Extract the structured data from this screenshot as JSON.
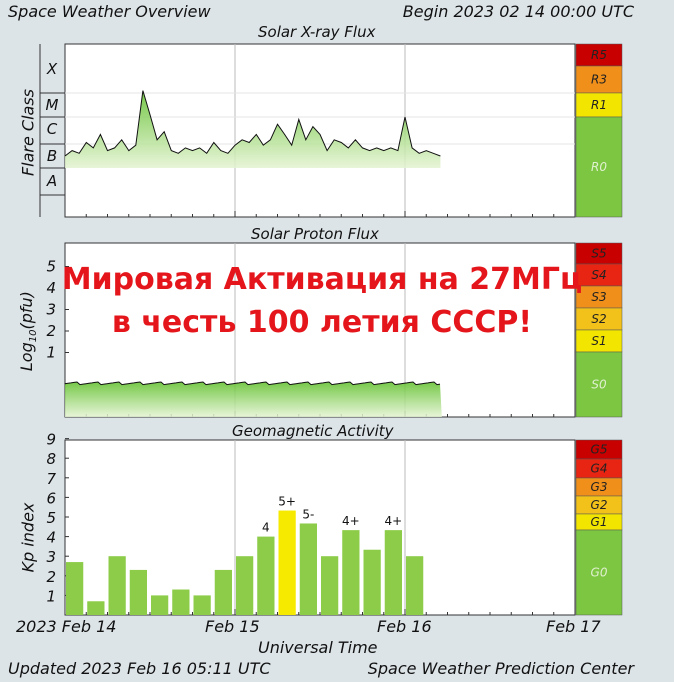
{
  "header": {
    "title": "Space Weather Overview",
    "begin": "Begin 2023 02 14 00:00 UTC"
  },
  "footer": {
    "updated": "Updated 2023 Feb 16 05:11 UTC",
    "center": "Space Weather Prediction Center",
    "xlabel": "Universal Time",
    "date_ticks": [
      "2023 Feb 14",
      "Feb 15",
      "Feb 16",
      "Feb 17"
    ]
  },
  "overlay": {
    "line1": "Мировая Активация на 27МГц",
    "line2": "в честь 100 летия СССР!"
  },
  "colors": {
    "green": "#7dc642",
    "yellow": "#f2e600",
    "orange": "#f0901a",
    "red": "#e82412",
    "darkred": "#c80000",
    "overlay_text": "#e5161b",
    "kp_bar": "#8ccc48",
    "kp_storm_bar": "#f6ea00"
  },
  "chart_data": [
    {
      "type": "area",
      "title": "Solar X-ray Flux",
      "ylabel": "Flare Class",
      "y_ticks": [
        "A",
        "B",
        "C",
        "M",
        "X"
      ],
      "scale_labels": [
        "R5",
        "R3",
        "R1",
        "R0"
      ],
      "x_range": [
        0,
        72
      ],
      "x_unit": "hours since 2023 Feb 14 00:00 UTC",
      "data_end_hour": 53.2,
      "series": [
        {
          "x": [
            0,
            1,
            2,
            3,
            4,
            5,
            6,
            7,
            8,
            9,
            10,
            11,
            12,
            13,
            14,
            15,
            16,
            17,
            18,
            19,
            20,
            21,
            22,
            23,
            24,
            25,
            26,
            27,
            28,
            29,
            30,
            31,
            32,
            33,
            34,
            35,
            36,
            37,
            38,
            39,
            40,
            41,
            42,
            43,
            44,
            45,
            46,
            47,
            48,
            49,
            50,
            51,
            52,
            53
          ],
          "values": [
            2.0,
            2.2,
            2.1,
            2.5,
            2.3,
            2.8,
            2.2,
            2.3,
            2.6,
            2.2,
            2.4,
            4.4,
            3.6,
            2.6,
            2.9,
            2.2,
            2.1,
            2.3,
            2.2,
            2.3,
            2.1,
            2.5,
            2.2,
            2.1,
            2.4,
            2.6,
            2.5,
            2.8,
            2.4,
            2.6,
            3.2,
            2.8,
            2.4,
            3.4,
            2.6,
            3.1,
            2.8,
            2.2,
            2.6,
            2.5,
            2.3,
            2.6,
            2.3,
            2.2,
            2.3,
            2.2,
            2.3,
            2.2,
            3.5,
            2.3,
            2.1,
            2.2,
            2.1,
            2.0
          ]
        }
      ]
    },
    {
      "type": "area",
      "title": "Solar Proton Flux",
      "ylabel": "Log10(pfu)",
      "y_ticks": [
        "1",
        "2",
        "3",
        "4",
        "5"
      ],
      "scale_labels": [
        "S5",
        "S4",
        "S3",
        "S2",
        "S1",
        "S0"
      ],
      "x_range": [
        0,
        72
      ],
      "x_unit": "hours since 2023 Feb 14 00:00 UTC",
      "data_end_hour": 53.2,
      "baseline": -0.7
    },
    {
      "type": "bar",
      "title": "Geomagnetic Activity",
      "ylabel": "Kp index",
      "y_ticks": [
        "1",
        "2",
        "3",
        "4",
        "5",
        "6",
        "7",
        "8",
        "9"
      ],
      "scale_labels": [
        "G5",
        "G4",
        "G3",
        "G2",
        "G1",
        "G0"
      ],
      "x_unit": "3-hour intervals from 2023 Feb 14 00:00 UTC",
      "values": [
        2.7,
        0.7,
        3.0,
        2.3,
        1.0,
        1.3,
        1.0,
        2.3,
        3.0,
        4.0,
        5.33,
        4.67,
        3.0,
        4.33,
        3.33,
        4.33,
        3.0
      ],
      "labels": [
        "",
        "",
        "",
        "",
        "",
        "",
        "",
        "",
        "",
        "4",
        "5+",
        "5-",
        "",
        "4+",
        "",
        "4+",
        ""
      ]
    }
  ]
}
